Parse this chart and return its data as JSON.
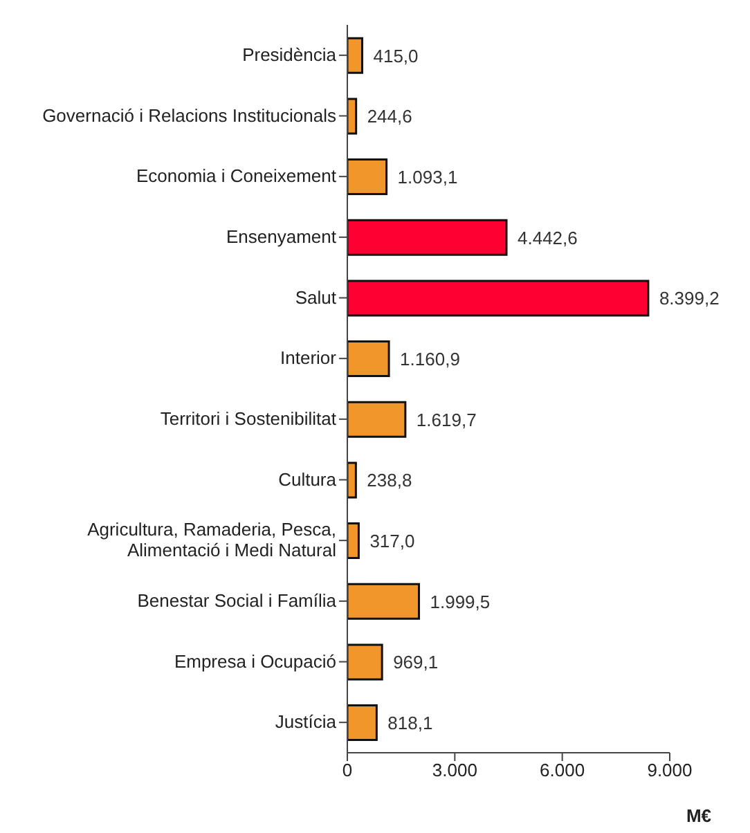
{
  "chart_data": {
    "type": "bar",
    "orientation": "horizontal",
    "xlabel": "M€",
    "categories": [
      "Presidència",
      "Governació i Relacions Institucionals",
      "Economia i Coneixement",
      "Ensenyament",
      "Salut",
      "Interior",
      "Territori i Sostenibilitat",
      "Cultura",
      "Agricultura, Ramaderia, Pesca, Alimentació i Medi Natural",
      "Benestar Social i Família",
      "Empresa i Ocupació",
      "Justícia"
    ],
    "values": [
      415.0,
      244.6,
      1093.1,
      4442.6,
      8399.2,
      1160.9,
      1619.7,
      238.8,
      317.0,
      1999.5,
      969.1,
      818.1
    ],
    "value_labels": [
      "415,0",
      "244,6",
      "1.093,1",
      "4.442,6",
      "8.399,2",
      "1.160,9",
      "1.619,7",
      "238,8",
      "317,0",
      "1.999,5",
      "969,1",
      "818,1"
    ],
    "colors": [
      "#f0962a",
      "#f0962a",
      "#f0962a",
      "#ff0033",
      "#ff0033",
      "#f0962a",
      "#f0962a",
      "#f0962a",
      "#f0962a",
      "#f0962a",
      "#f0962a",
      "#f0962a"
    ],
    "xlim": [
      0,
      9000
    ],
    "xticks": [
      0,
      {
        "value": 3000,
        "label": "3.000"
      },
      {
        "value": 6000,
        "label": "6.000"
      },
      {
        "value": 9000,
        "label": "9.000"
      }
    ],
    "grid": false
  }
}
